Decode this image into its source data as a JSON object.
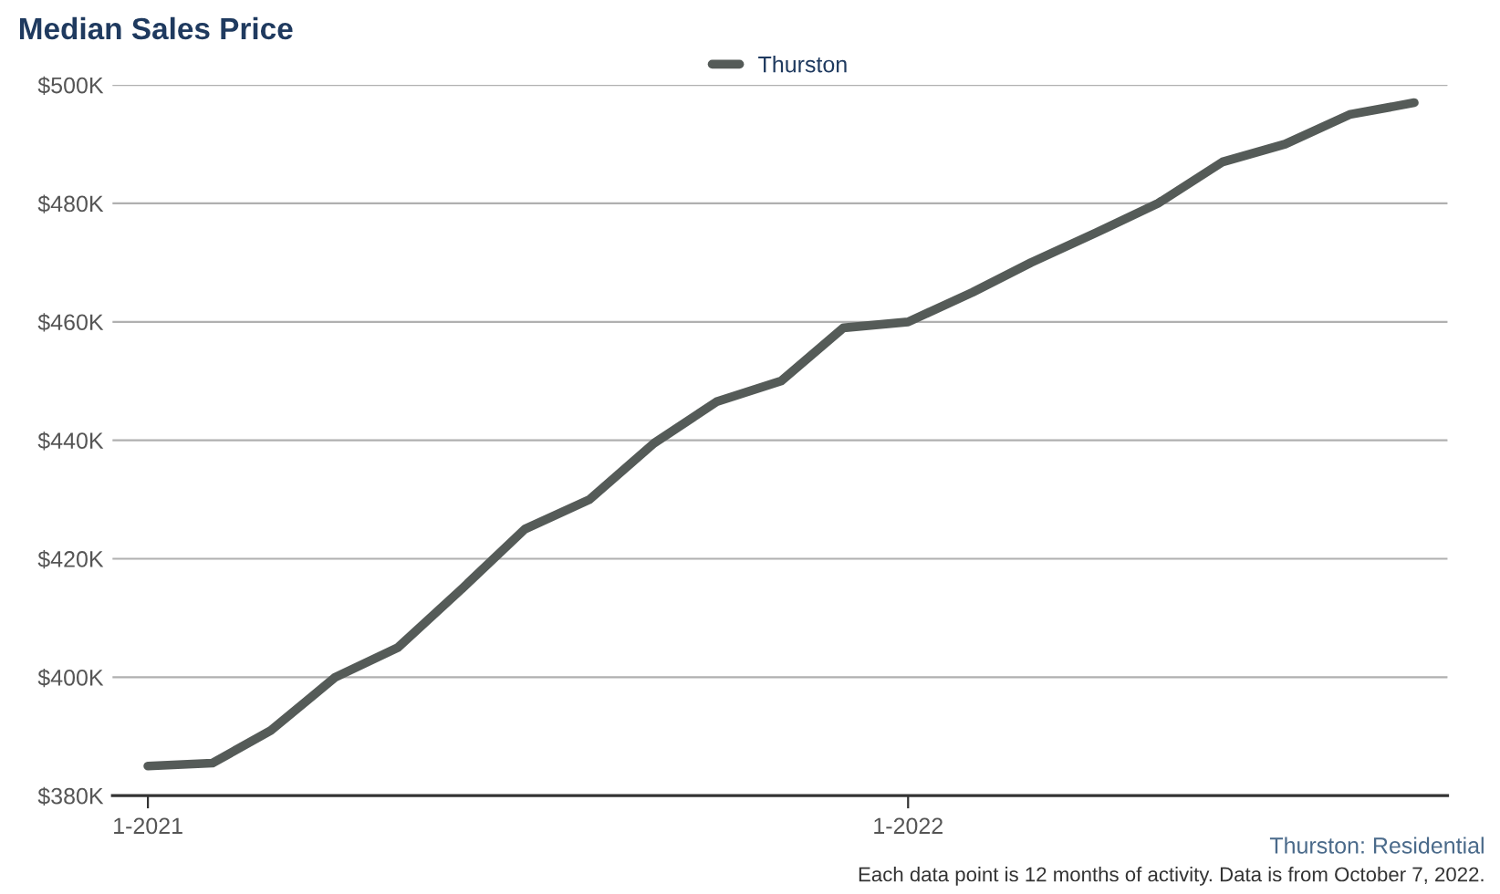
{
  "chart_data": {
    "type": "line",
    "title": "Median Sales Price",
    "x": [
      "2021-01",
      "2021-02",
      "2021-03",
      "2021-04",
      "2021-05",
      "2021-06",
      "2021-07",
      "2021-08",
      "2021-09",
      "2021-10",
      "2021-11",
      "2021-12",
      "2022-01",
      "2022-02",
      "2022-03",
      "2022-04",
      "2022-05",
      "2022-06",
      "2022-07",
      "2022-08",
      "2022-09"
    ],
    "series": [
      {
        "name": "Thurston",
        "color": "#555b58",
        "values": [
          385000,
          385500,
          391000,
          400000,
          405000,
          415000,
          425000,
          430000,
          439500,
          446500,
          450000,
          459000,
          460000,
          465000,
          470000,
          475000,
          480000,
          487000,
          490000,
          495000,
          497000
        ]
      }
    ],
    "xlim": [
      "2020-12-15",
      "2022-09-17"
    ],
    "xticks": [
      {
        "value": "2021-01",
        "label": "1-2021"
      },
      {
        "value": "2022-01",
        "label": "1-2022"
      }
    ],
    "ylim": [
      380000,
      500000
    ],
    "yticks": [
      {
        "value": 380000,
        "label": "$380K"
      },
      {
        "value": 400000,
        "label": "$400K"
      },
      {
        "value": 420000,
        "label": "$420K"
      },
      {
        "value": 440000,
        "label": "$440K"
      },
      {
        "value": 460000,
        "label": "$460K"
      },
      {
        "value": 480000,
        "label": "$480K"
      },
      {
        "value": 500000,
        "label": "$500K"
      }
    ],
    "grid": "y",
    "legend": "top",
    "marker": "none",
    "line_style": "solid",
    "annotations": [
      "Thurston: Residential",
      "Each data point is 12 months of activity. Data is from October 7, 2022."
    ]
  }
}
